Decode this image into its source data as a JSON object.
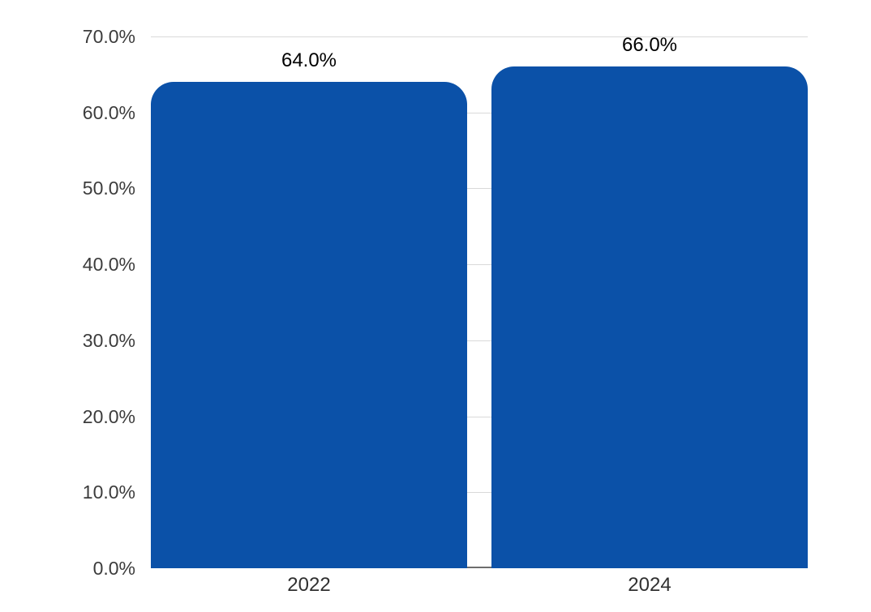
{
  "chart_data": {
    "type": "bar",
    "title": "",
    "xlabel": "",
    "ylabel": "",
    "categories": [
      "2022",
      "2024"
    ],
    "values": [
      64.0,
      66.0
    ],
    "data_labels": [
      "64.0%",
      "66.0%"
    ],
    "ylim": [
      0,
      70
    ],
    "yticks": [
      0,
      10,
      20,
      30,
      40,
      50,
      60,
      70
    ],
    "ytick_labels": [
      "0.0%",
      "10.0%",
      "20.0%",
      "30.0%",
      "40.0%",
      "50.0%",
      "60.0%",
      "70.0%"
    ],
    "grid": true,
    "legend": false,
    "colors": {
      "bar": "#0b51a8",
      "gridline": "#d9d9d9",
      "axis_line": "#6e6e6e",
      "axis_text": "#3c3c3c",
      "category_text": "#303030",
      "data_label_text": "#000000",
      "background": "#ffffff"
    }
  }
}
